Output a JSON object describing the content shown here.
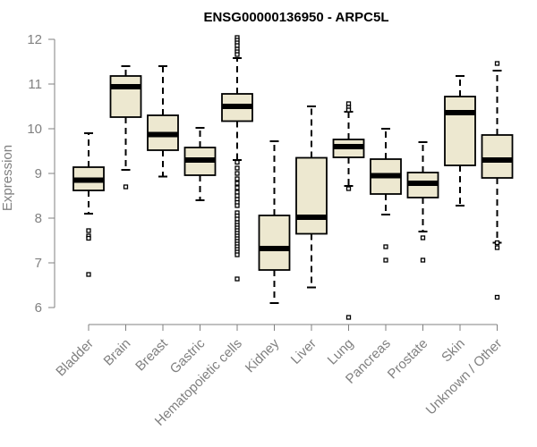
{
  "chart_data": {
    "type": "box",
    "title": "ENSG00000136950 - ARPC5L",
    "xlabel": "",
    "ylabel": "Expression",
    "ylim": [
      5.95,
      12.1
    ],
    "yticks": [
      6,
      7,
      8,
      9,
      10,
      11,
      12
    ],
    "categories": [
      "Bladder",
      "Brain",
      "Breast",
      "Gastric",
      "Hematopoietic cells",
      "Kidney",
      "Liver",
      "Lung",
      "Pancreas",
      "Prostate",
      "Skin",
      "Unknown / Other"
    ],
    "boxes": [
      {
        "category": "Bladder",
        "whisker_low": 8.1,
        "q1": 8.62,
        "median": 8.85,
        "q3": 9.14,
        "whisker_high": 9.9,
        "outliers": [
          7.72,
          7.6,
          7.55,
          6.74
        ]
      },
      {
        "category": "Brain",
        "whisker_low": 9.08,
        "q1": 10.26,
        "median": 10.94,
        "q3": 11.18,
        "whisker_high": 11.4,
        "outliers": [
          8.7
        ]
      },
      {
        "category": "Breast",
        "whisker_low": 8.93,
        "q1": 9.52,
        "median": 9.87,
        "q3": 10.3,
        "whisker_high": 11.4,
        "outliers": []
      },
      {
        "category": "Gastric",
        "whisker_low": 8.4,
        "q1": 8.96,
        "median": 9.3,
        "q3": 9.58,
        "whisker_high": 10.02,
        "outliers": []
      },
      {
        "category": "Hematopoietic cells",
        "whisker_low": 9.3,
        "q1": 10.17,
        "median": 10.5,
        "q3": 10.78,
        "whisker_high": 11.58,
        "outliers": [
          12.04,
          11.98,
          11.92,
          11.86,
          11.78,
          11.72,
          11.66,
          9.25,
          9.12,
          9.0,
          8.88,
          8.78,
          8.68,
          8.58,
          8.5,
          8.42,
          8.35,
          8.28,
          8.12,
          8.05,
          7.98,
          7.9,
          7.84,
          7.78,
          7.72,
          7.66,
          7.6,
          7.54,
          7.48,
          7.42,
          7.36,
          7.3,
          7.24,
          7.18,
          6.64
        ]
      },
      {
        "category": "Kidney",
        "whisker_low": 6.1,
        "q1": 6.84,
        "median": 7.32,
        "q3": 8.06,
        "whisker_high": 9.72,
        "outliers": []
      },
      {
        "category": "Liver",
        "whisker_low": 6.45,
        "q1": 7.65,
        "median": 8.02,
        "q3": 9.35,
        "whisker_high": 10.5,
        "outliers": []
      },
      {
        "category": "Lung",
        "whisker_low": 8.72,
        "q1": 9.36,
        "median": 9.6,
        "q3": 9.76,
        "whisker_high": 10.38,
        "outliers": [
          10.56,
          10.48,
          10.42,
          8.66,
          5.78
        ]
      },
      {
        "category": "Pancreas",
        "whisker_low": 8.08,
        "q1": 8.54,
        "median": 8.95,
        "q3": 9.32,
        "whisker_high": 10.0,
        "outliers": [
          7.36,
          7.06
        ]
      },
      {
        "category": "Prostate",
        "whisker_low": 7.7,
        "q1": 8.46,
        "median": 8.78,
        "q3": 9.02,
        "whisker_high": 9.7,
        "outliers": [
          7.56,
          7.06
        ]
      },
      {
        "category": "Skin",
        "whisker_low": 8.28,
        "q1": 9.18,
        "median": 10.36,
        "q3": 10.72,
        "whisker_high": 11.18,
        "outliers": []
      },
      {
        "category": "Unknown / Other",
        "whisker_low": 7.45,
        "q1": 8.9,
        "median": 9.3,
        "q3": 9.86,
        "whisker_high": 11.3,
        "outliers": [
          11.46,
          7.45,
          7.34,
          6.23
        ]
      }
    ],
    "grid": false,
    "legend": "none",
    "colors": {
      "box_fill": "#ede8d0",
      "box_stroke": "#000000",
      "axis": "#808080",
      "tick_labels": "#808080",
      "title": "#000000"
    }
  }
}
